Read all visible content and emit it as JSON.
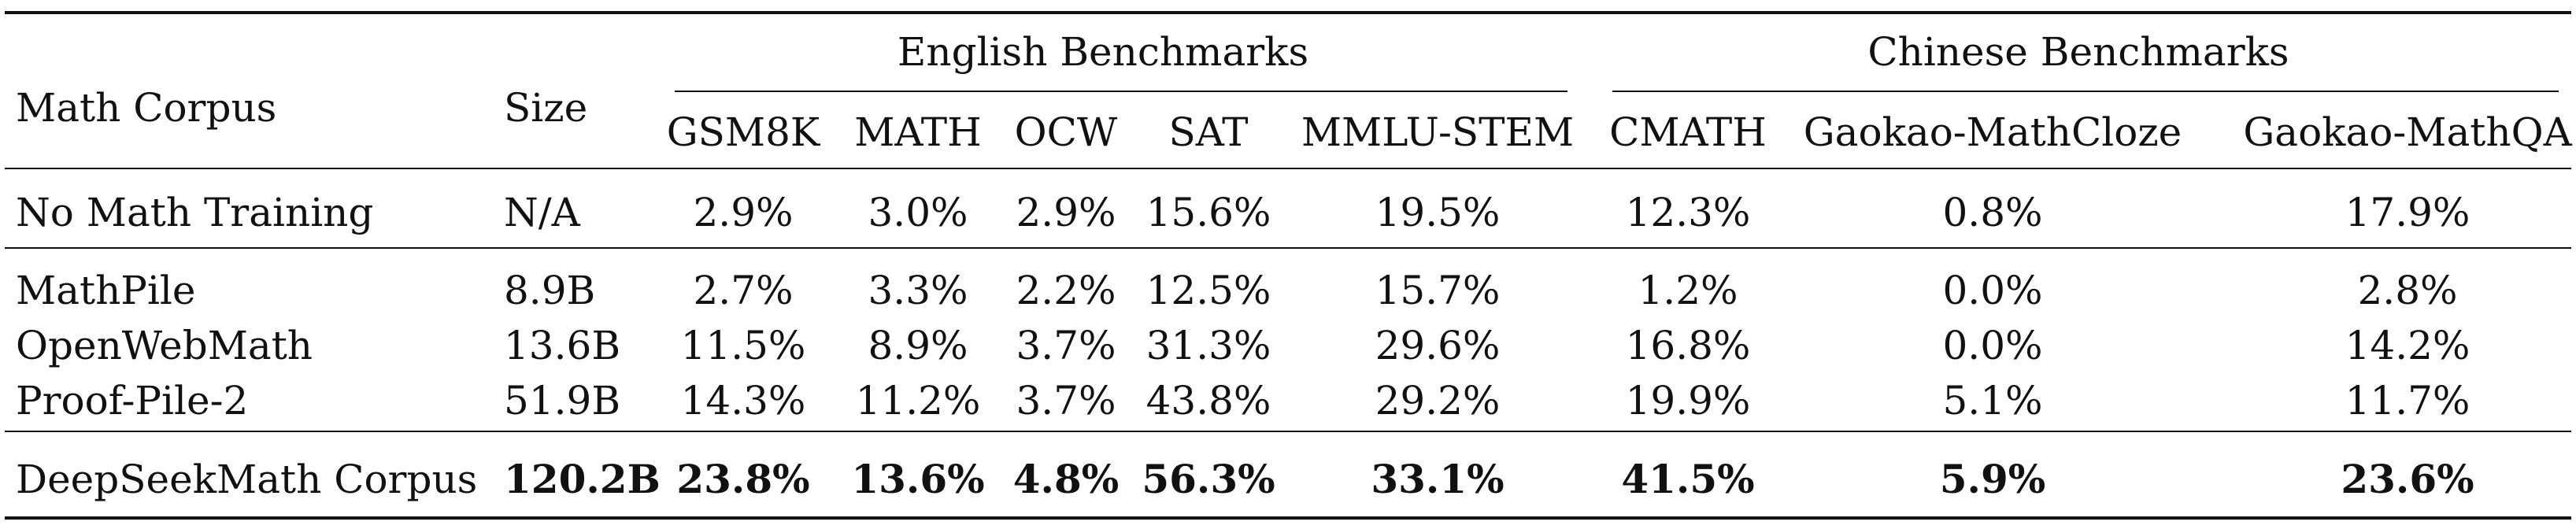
{
  "table": {
    "header": {
      "corpus": "Math Corpus",
      "size": "Size",
      "english_group": "English Benchmarks",
      "chinese_group": "Chinese Benchmarks",
      "columns": [
        "GSM8K",
        "MATH",
        "OCW",
        "SAT",
        "MMLU-STEM",
        "CMATH",
        "Gaokao-MathCloze",
        "Gaokao-MathQA"
      ]
    },
    "rows": [
      {
        "name": "No Math Training",
        "size": "N/A",
        "values": [
          "2.9%",
          "3.0%",
          "2.9%",
          "15.6%",
          "19.5%",
          "12.3%",
          "0.8%",
          "17.9%"
        ]
      },
      {
        "name": "MathPile",
        "size": "8.9B",
        "values": [
          "2.7%",
          "3.3%",
          "2.2%",
          "12.5%",
          "15.7%",
          "1.2%",
          "0.0%",
          "2.8%"
        ]
      },
      {
        "name": "OpenWebMath",
        "size": "13.6B",
        "values": [
          "11.5%",
          "8.9%",
          "3.7%",
          "31.3%",
          "29.6%",
          "16.8%",
          "0.0%",
          "14.2%"
        ]
      },
      {
        "name": "Proof-Pile-2",
        "size": "51.9B",
        "values": [
          "14.3%",
          "11.2%",
          "3.7%",
          "43.8%",
          "29.2%",
          "19.9%",
          "5.1%",
          "11.7%"
        ]
      },
      {
        "name": "DeepSeekMath Corpus",
        "size": "120.2B",
        "values": [
          "23.8%",
          "13.6%",
          "4.8%",
          "56.3%",
          "33.1%",
          "41.5%",
          "5.9%",
          "23.6%"
        ]
      }
    ]
  }
}
